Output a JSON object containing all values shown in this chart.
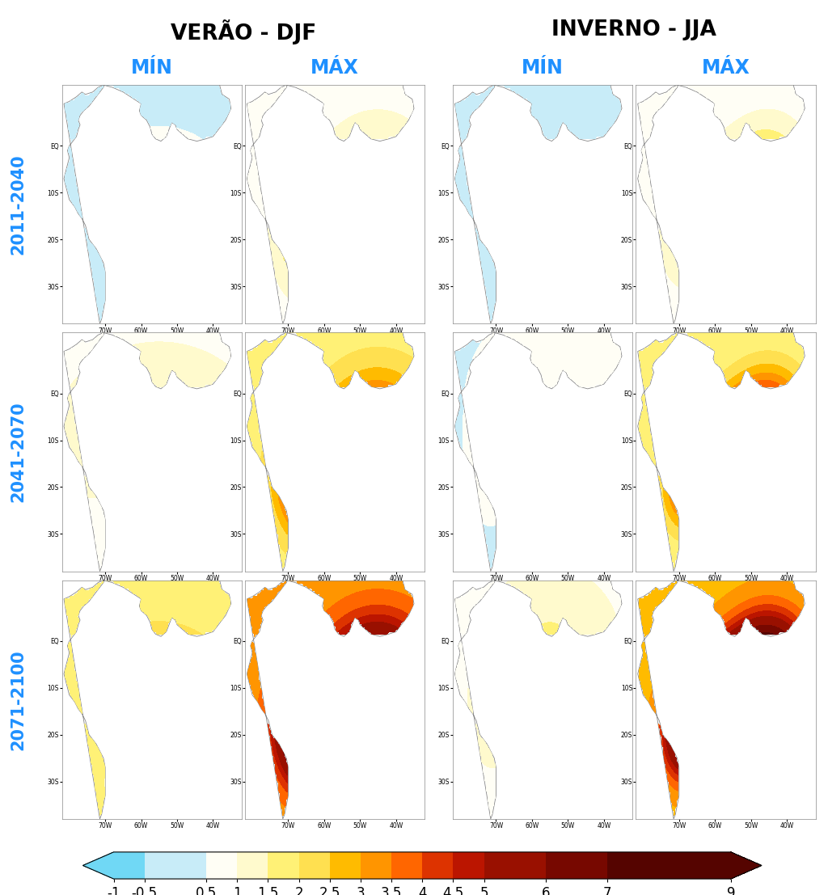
{
  "title_left": "VERÃO - DJF",
  "title_right": "INVERNO - JJA",
  "col_labels": [
    "MÍN",
    "MÁX",
    "MÍN",
    "MÁX"
  ],
  "row_labels": [
    "2011-2040",
    "2041-2070",
    "2071-2100"
  ],
  "colorbar_values": [
    -1,
    -0.5,
    0.5,
    1,
    1.5,
    2,
    2.5,
    3,
    3.5,
    4,
    4.5,
    5,
    6,
    7,
    9
  ],
  "colorbar_colors": [
    "#70d8f5",
    "#c8ecf8",
    "#fffef5",
    "#fffacd",
    "#fff176",
    "#ffe050",
    "#ffbb00",
    "#ff9500",
    "#ff6600",
    "#dd3300",
    "#bb1500",
    "#991000",
    "#770800",
    "#550400",
    "#330000"
  ],
  "background_color": "#ffffff",
  "title_fontsize": 19,
  "col_label_fontsize": 17,
  "row_label_fontsize": 15,
  "col_label_color": "#1e90ff",
  "row_label_color": "#1e90ff",
  "title_color": "#000000",
  "colorbar_label_fontsize": 12,
  "fig_width": 10.24,
  "fig_height": 11.07,
  "lon_min": -82,
  "lon_max": -32,
  "lat_min": -38,
  "lat_max": 13
}
